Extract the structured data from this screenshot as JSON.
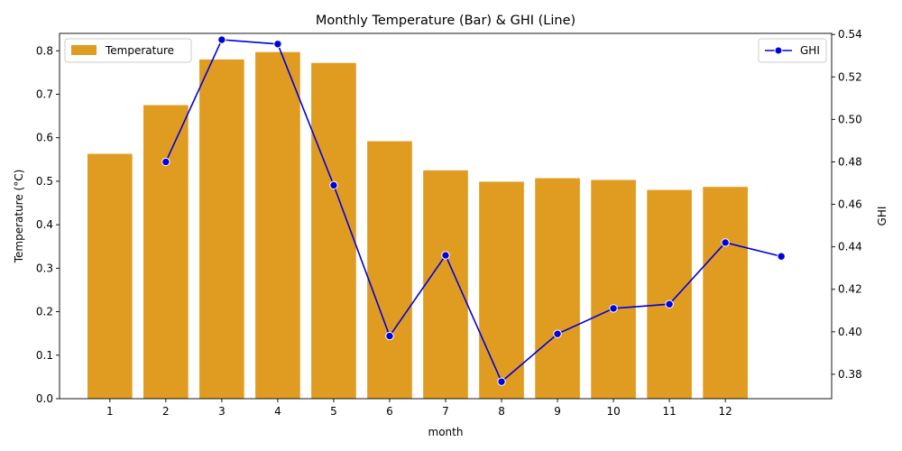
{
  "chart_data": {
    "type": "bar",
    "title": "Monthly Temperature (Bar) & GHI (Line)",
    "xlabel": "month",
    "ylabel": "Temperature (°C)",
    "y2label": "GHI",
    "categories": [
      "1",
      "2",
      "3",
      "4",
      "5",
      "6",
      "7",
      "8",
      "9",
      "10",
      "11",
      "12"
    ],
    "series": [
      {
        "name": "Temperature",
        "type": "bar",
        "axis": "left",
        "color": "#e09c20",
        "values": [
          0.563,
          0.675,
          0.78,
          0.797,
          0.772,
          0.592,
          0.525,
          0.499,
          0.507,
          0.503,
          0.48,
          0.487
        ]
      },
      {
        "name": "GHI",
        "type": "line",
        "axis": "right",
        "color": "#0000dd",
        "marker": "circle",
        "points": [
          {
            "x": 2,
            "y": 0.48
          },
          {
            "x": 3,
            "y": 0.5375
          },
          {
            "x": 4,
            "y": 0.5355
          },
          {
            "x": 5,
            "y": 0.469
          },
          {
            "x": 6,
            "y": 0.398
          },
          {
            "x": 7,
            "y": 0.436
          },
          {
            "x": 8,
            "y": 0.3765
          },
          {
            "x": 9,
            "y": 0.399
          },
          {
            "x": 10,
            "y": 0.411
          },
          {
            "x": 11,
            "y": 0.413
          },
          {
            "x": 12,
            "y": 0.442
          },
          {
            "x": 13,
            "y": 0.4355
          }
        ]
      }
    ],
    "ylim": [
      0,
      0.84
    ],
    "y2lim": [
      0.3685,
      0.5405
    ],
    "yticks": [
      "0.0",
      "0.1",
      "0.2",
      "0.3",
      "0.4",
      "0.5",
      "0.6",
      "0.7",
      "0.8"
    ],
    "y2ticks": [
      "0.38",
      "0.40",
      "0.42",
      "0.44",
      "0.46",
      "0.48",
      "0.50",
      "0.52",
      "0.54"
    ],
    "legend_left": "top-left",
    "legend_right": "top-right",
    "grid": false
  }
}
